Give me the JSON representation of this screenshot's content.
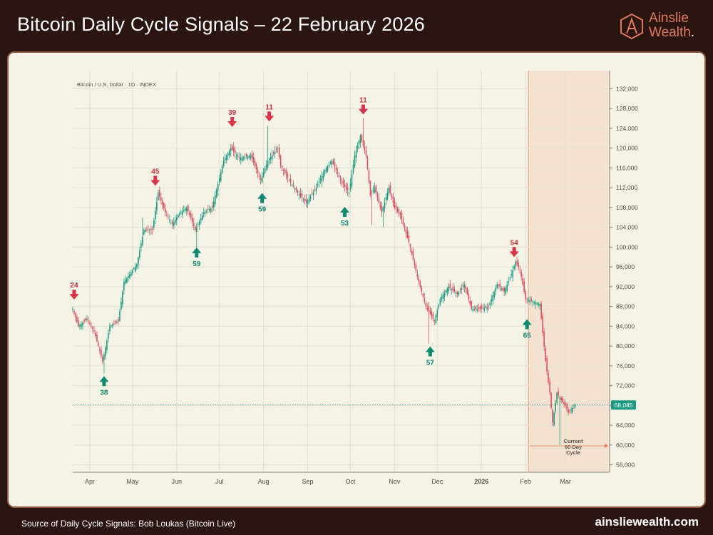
{
  "header": {
    "title": "Bitcoin Daily Cycle Signals – 22 February 2026",
    "logo_line1": "Ainslie",
    "logo_line2": "Wealth",
    "logo_dot": ".",
    "logo_color": "#e07a5f"
  },
  "footer": {
    "source": "Source of Daily Cycle Signals: Bob Loukas (Bitcoin Live)",
    "website": "ainsliewealth.com"
  },
  "chart_data": {
    "type": "candlestick",
    "symbol_label": "Bitcoin / U.S. Dollar · 1D · INDEX",
    "x_ticks": [
      "Apr",
      "May",
      "Jun",
      "Jul",
      "Aug",
      "Sep",
      "Oct",
      "Nov",
      "Dec",
      "2026",
      "Feb",
      "Mar"
    ],
    "x_tick_days": [
      0,
      30,
      61,
      91,
      122,
      153,
      183,
      214,
      244,
      275,
      306,
      334
    ],
    "x_range_days": [
      -12,
      365
    ],
    "y_ticks": [
      56000,
      60000,
      64000,
      68000,
      72000,
      76000,
      80000,
      84000,
      88000,
      92000,
      96000,
      100000,
      104000,
      108000,
      112000,
      116000,
      120000,
      124000,
      128000,
      132000
    ],
    "y_range": [
      54500,
      133500
    ],
    "grid": true,
    "last_price": 68085,
    "last_price_label": "68,085",
    "up_color": "#1a9a82",
    "down_color": "#d8505f",
    "anchors": [
      [
        -12,
        87500
      ],
      [
        -8,
        84000
      ],
      [
        -2,
        85500
      ],
      [
        3,
        83000
      ],
      [
        7,
        79000
      ],
      [
        9,
        76800
      ],
      [
        14,
        84000
      ],
      [
        20,
        85000
      ],
      [
        24,
        93000
      ],
      [
        28,
        94500
      ],
      [
        33,
        96500
      ],
      [
        38,
        103500
      ],
      [
        44,
        103500
      ],
      [
        48,
        111000
      ],
      [
        53,
        107000
      ],
      [
        58,
        104500
      ],
      [
        62,
        106500
      ],
      [
        68,
        108000
      ],
      [
        74,
        103500
      ],
      [
        80,
        107000
      ],
      [
        86,
        108000
      ],
      [
        94,
        117500
      ],
      [
        99,
        120000
      ],
      [
        105,
        118000
      ],
      [
        113,
        118500
      ],
      [
        120,
        113500
      ],
      [
        125,
        117500
      ],
      [
        132,
        120000
      ],
      [
        134,
        116500
      ],
      [
        140,
        113500
      ],
      [
        146,
        111000
      ],
      [
        152,
        109000
      ],
      [
        158,
        111500
      ],
      [
        165,
        115500
      ],
      [
        170,
        117500
      ],
      [
        176,
        113500
      ],
      [
        182,
        111000
      ],
      [
        186,
        118500
      ],
      [
        190,
        122500
      ],
      [
        194,
        118500
      ],
      [
        197,
        110500
      ],
      [
        200,
        112000
      ],
      [
        205,
        107000
      ],
      [
        210,
        112000
      ],
      [
        214,
        108000
      ],
      [
        218,
        106500
      ],
      [
        224,
        101000
      ],
      [
        230,
        94000
      ],
      [
        236,
        88000
      ],
      [
        242,
        85000
      ],
      [
        246,
        89500
      ],
      [
        252,
        92000
      ],
      [
        258,
        90500
      ],
      [
        263,
        92500
      ],
      [
        268,
        87500
      ],
      [
        274,
        87500
      ],
      [
        280,
        88000
      ],
      [
        286,
        92500
      ],
      [
        291,
        91000
      ],
      [
        296,
        94500
      ],
      [
        299,
        97000
      ],
      [
        302,
        95500
      ],
      [
        306,
        89500
      ],
      [
        311,
        89000
      ],
      [
        316,
        88500
      ],
      [
        320,
        77000
      ],
      [
        323,
        70500
      ],
      [
        325,
        64500
      ],
      [
        328,
        70500
      ],
      [
        331,
        69000
      ],
      [
        334,
        68000
      ],
      [
        336,
        66500
      ],
      [
        339,
        67500
      ],
      [
        341,
        68085
      ]
    ],
    "spikes": [
      [
        10,
        "low",
        74500
      ],
      [
        37,
        "high",
        106000
      ],
      [
        75,
        "low",
        98500
      ],
      [
        125,
        "high",
        124500
      ],
      [
        192,
        "high",
        126000
      ],
      [
        198,
        "low",
        104500
      ],
      [
        206,
        "low",
        104000
      ],
      [
        238,
        "low",
        80500
      ],
      [
        330,
        "low",
        60000
      ]
    ],
    "signals": [
      {
        "day": -11,
        "price": 88800,
        "label": "24",
        "type": "top"
      },
      {
        "day": 46,
        "price": 111800,
        "label": "45",
        "type": "top"
      },
      {
        "day": 100,
        "price": 123700,
        "label": "39",
        "type": "top"
      },
      {
        "day": 126,
        "price": 124800,
        "label": "11",
        "type": "top"
      },
      {
        "day": 192,
        "price": 126200,
        "label": "11",
        "type": "top"
      },
      {
        "day": 298,
        "price": 97400,
        "label": "54",
        "type": "top"
      },
      {
        "day": 10,
        "price": 74500,
        "label": "38",
        "type": "bottom"
      },
      {
        "day": 75,
        "price": 100500,
        "label": "59",
        "type": "bottom"
      },
      {
        "day": 121,
        "price": 111500,
        "label": "59",
        "type": "bottom"
      },
      {
        "day": 179,
        "price": 108700,
        "label": "53",
        "type": "bottom"
      },
      {
        "day": 239,
        "price": 80500,
        "label": "57",
        "type": "bottom"
      },
      {
        "day": 307,
        "price": 86000,
        "label": "65",
        "type": "bottom"
      }
    ],
    "current_cycle": {
      "start_day": 308,
      "label_lines": [
        "Current",
        "60 Day",
        "Cycle"
      ],
      "fill": "#f3dcc8",
      "line_color": "#e07a5f"
    }
  }
}
